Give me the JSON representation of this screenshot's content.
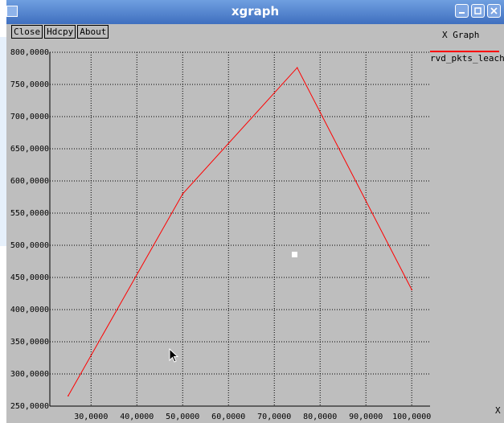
{
  "window": {
    "title": "xgraph",
    "menu_icon": "window-menu-icon",
    "controls": [
      "minimize-icon",
      "maximize-icon",
      "close-icon"
    ]
  },
  "buttons": {
    "close": "Close",
    "hdcpy": "Hdcpy",
    "about": "About"
  },
  "graph": {
    "title": "X Graph",
    "x_unit": "X"
  },
  "colors": {
    "series": "#ff0000",
    "background": "#bebebe",
    "titlebar": "#4f7fcf"
  },
  "chart_data": {
    "type": "line",
    "title": "X Graph",
    "xlabel": "X",
    "ylabel": "",
    "xlim": [
      21000,
      104000
    ],
    "ylim": [
      250,
      800
    ],
    "grid": true,
    "legend_placement": "right",
    "x_ticks": [
      "30,0000",
      "40,0000",
      "50,0000",
      "60,0000",
      "70,0000",
      "80,0000",
      "90,0000",
      "100,0000"
    ],
    "x_tick_values": [
      30000,
      40000,
      50000,
      60000,
      70000,
      80000,
      90000,
      100000
    ],
    "y_ticks": [
      "250,0000",
      "300,0000",
      "350,0000",
      "400,0000",
      "450,0000",
      "500,0000",
      "550,0000",
      "600,0000",
      "650,0000",
      "700,0000",
      "750,0000",
      "800,0000"
    ],
    "y_tick_values": [
      250,
      300,
      350,
      400,
      450,
      500,
      550,
      600,
      650,
      700,
      750,
      800
    ],
    "series": [
      {
        "name": "rvd_pkts_leach",
        "color": "#ff0000",
        "x": [
          25000,
          50000,
          75000,
          100000
        ],
        "y": [
          266,
          580,
          776,
          431
        ]
      }
    ]
  }
}
